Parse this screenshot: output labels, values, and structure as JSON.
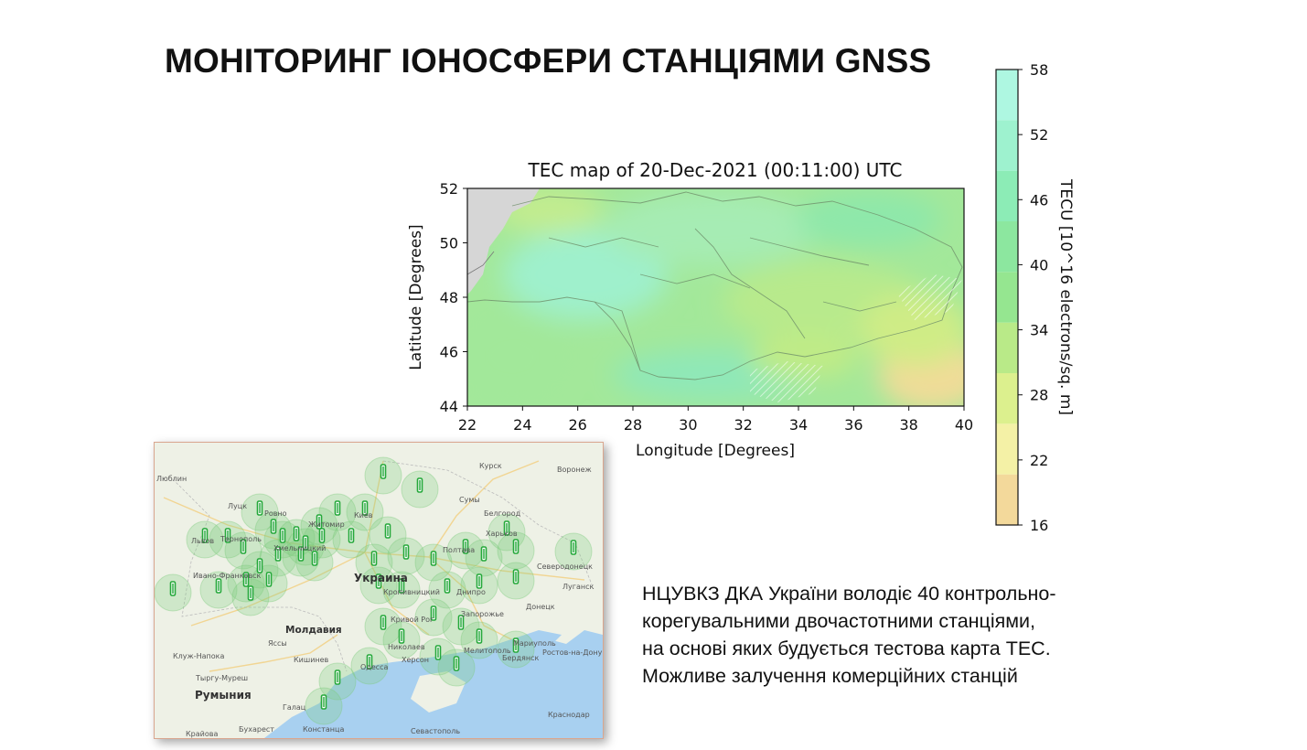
{
  "slide": {
    "title": "МОНІТОРИНГ ІОНОСФЕРИ СТАНЦІЯМИ GNSS",
    "description_lines": [
      "НЦУВКЗ ДКА України володіє 40 контрольно-",
      "корегувальними двочастотними станціями,",
      "на основі яких будується тестова карта ТЕС.",
      "Можливе залучення комерційних станцій"
    ]
  },
  "chart_data": {
    "type": "heatmap",
    "title": "TEC map of 20-Dec-2021 (00:11:00) UTC",
    "xlabel": "Longitude [Degrees]",
    "ylabel": "Latitude [Degrees]",
    "xlim": [
      22,
      40
    ],
    "ylim": [
      44,
      52
    ],
    "xticks": [
      22,
      24,
      26,
      28,
      30,
      32,
      34,
      36,
      38,
      40
    ],
    "yticks": [
      44,
      46,
      48,
      50,
      52
    ],
    "colorbar": {
      "label": "TECU [10^16 electrons/sq. m]",
      "range": [
        16,
        58
      ],
      "ticks": [
        16,
        22,
        28,
        34,
        40,
        46,
        52,
        58
      ],
      "colors": [
        "#f3d99b",
        "#f4f1a6",
        "#dcf08e",
        "#b9ea88",
        "#95e690",
        "#8ce79f",
        "#8cecb6",
        "#9ef2cf",
        "#aef7e1"
      ]
    },
    "approx_values": [
      {
        "lon": 24,
        "lat": 50,
        "tec": 40
      },
      {
        "lon": 28,
        "lat": 49,
        "tec": 49
      },
      {
        "lon": 32,
        "lat": 48,
        "tec": 40
      },
      {
        "lon": 35,
        "lat": 46.5,
        "tec": 31
      },
      {
        "lon": 39,
        "lat": 44.5,
        "tec": 21
      },
      {
        "lon": 30,
        "lat": 45,
        "tec": 42
      }
    ]
  },
  "station_map": {
    "cities": {
      "lublin": "Люблин",
      "kursk": "Курск",
      "voronezh": "Воронеж",
      "lutsk": "Луцк",
      "rivne": "Ровно",
      "sumy": "Сумы",
      "zhytomyr": "Житомир",
      "kyiv": "Киев",
      "belgorod": "Белгород",
      "lviv": "Львов",
      "ternopil": "Тернополь",
      "kharkiv": "Харьков",
      "poltava": "Полтава",
      "khmelnytskyi": "Хмельницкий",
      "ivano": "Ивано-Франковск",
      "severodonetsk": "Северодонецк",
      "ukraine": "Украина",
      "luhansk": "Луганск",
      "kropyvnytskyi": "Кропивницкий",
      "dnipro": "Днипро",
      "donetsk": "Донецк",
      "zaporizhzhia": "Запорожье",
      "kryvyi": "Кривой Рог",
      "moldova": "Молдавия",
      "yassy": "Яссы",
      "mykolaiv": "Николаев",
      "mariupol": "Мариуполь",
      "rostov": "Ростов-на-Дону",
      "kluj": "Клуж-Напока",
      "chisinau": "Кишинев",
      "kherson": "Херсон",
      "berdiansk": "Бердянск",
      "melitopol": "Мелитополь",
      "odesa": "Одесса",
      "targu": "Тыргу-Муреш",
      "romania": "Румыния",
      "galati": "Галац",
      "krasnodar": "Краснодар",
      "sevastopol": "Севастополь",
      "craiova": "Крайова",
      "bucharest": "Бухарест",
      "constanta": "Констанца"
    }
  },
  "colors": {
    "station_marker": "#25a83a",
    "station_circle": "#7ecb7c",
    "sea": "#a8d0f0",
    "land": "#eef1e6",
    "panel_border": "#d9a68f"
  }
}
